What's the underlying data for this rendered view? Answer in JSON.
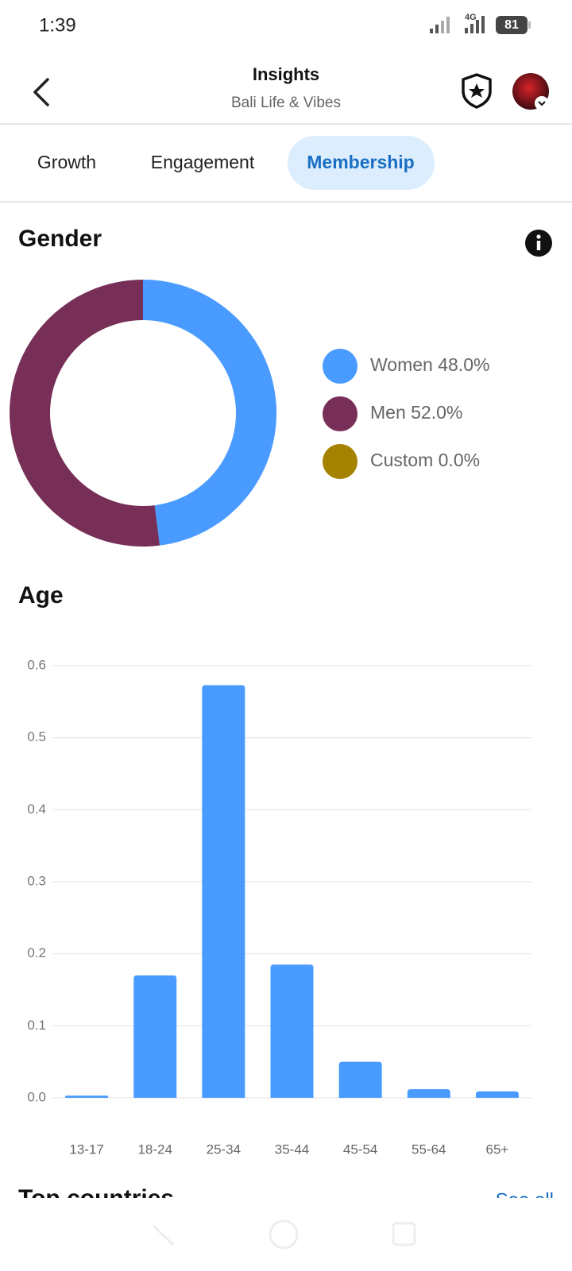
{
  "status_bar": {
    "time": "1:39",
    "network": "4G",
    "battery": "81"
  },
  "header": {
    "title": "Insights",
    "subtitle": "Bali Life & Vibes"
  },
  "tabs": [
    "Growth",
    "Engagement",
    "Membership"
  ],
  "active_tab": 2,
  "chart_data": [
    {
      "type": "pie",
      "title": "Gender",
      "donut": true,
      "categories": [
        "Women",
        "Men",
        "Custom"
      ],
      "values": [
        48.0,
        52.0,
        0.0
      ],
      "value_labels": [
        "48.0%",
        "52.0%",
        "0.0%"
      ],
      "colors": [
        "#4a9bff",
        "#772f57",
        "#a58200"
      ]
    },
    {
      "type": "bar",
      "title": "Age",
      "categories": [
        "13-17",
        "18-24",
        "25-34",
        "35-44",
        "45-54",
        "55-64",
        "65+"
      ],
      "values": [
        0.003,
        0.17,
        0.573,
        0.185,
        0.05,
        0.012,
        0.009
      ],
      "color": "#4a9bff",
      "ylim": [
        0,
        0.6
      ],
      "yticks": [
        {
          "value": 0,
          "label": "0.0"
        },
        0.1,
        0.2,
        0.3,
        0.4,
        0.5,
        0.6
      ],
      "grid": true
    }
  ],
  "next_section": {
    "title": "Top countries",
    "link": "See all"
  }
}
